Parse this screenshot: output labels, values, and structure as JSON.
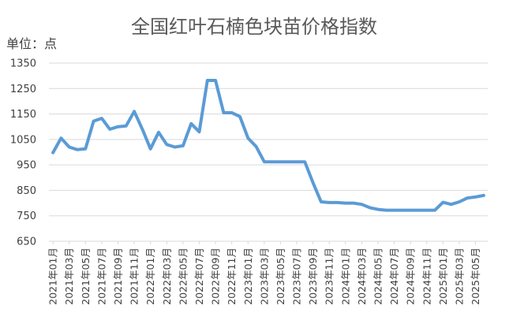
{
  "chart_data": {
    "type": "line",
    "title": "全国红叶石楠色块苗价格指数",
    "unit_label": "单位：点",
    "ylim": [
      650,
      1350
    ],
    "yticks": [
      650,
      750,
      850,
      950,
      1050,
      1150,
      1250,
      1350
    ],
    "grid": true,
    "line_color": "#5b9bd5",
    "x": [
      "2021年01月",
      "2021年02月",
      "2021年03月",
      "2021年04月",
      "2021年05月",
      "2021年06月",
      "2021年07月",
      "2021年08月",
      "2021年09月",
      "2021年10月",
      "2021年11月",
      "2021年12月",
      "2022年01月",
      "2022年02月",
      "2022年03月",
      "2022年04月",
      "2022年05月",
      "2022年06月",
      "2022年07月",
      "2022年08月",
      "2022年09月",
      "2022年10月",
      "2022年11月",
      "2022年12月",
      "2023年01月",
      "2023年02月",
      "2023年03月",
      "2023年04月",
      "2023年05月",
      "2023年06月",
      "2023年07月",
      "2023年08月",
      "2023年09月",
      "2023年10月",
      "2023年11月",
      "2023年12月",
      "2024年01月",
      "2024年02月",
      "2024年03月",
      "2024年04月",
      "2024年05月",
      "2024年06月",
      "2024年07月",
      "2024年08月",
      "2024年09月",
      "2024年10月",
      "2024年11月",
      "2024年12月",
      "2025年01月",
      "2025年02月",
      "2025年03月",
      "2025年04月",
      "2025年05月",
      "2025年06月"
    ],
    "xtick_labels": [
      "2021年01月",
      "2021年03月",
      "2021年05月",
      "2021年07月",
      "2021年09月",
      "2021年11月",
      "2022年01月",
      "2022年03月",
      "2022年05月",
      "2022年07月",
      "2022年09月",
      "2022年11月",
      "2023年01月",
      "2023年03月",
      "2023年05月",
      "2023年07月",
      "2023年09月",
      "2023年11月",
      "2024年01月",
      "2024年03月",
      "2024年05月",
      "2024年07月",
      "2024年09月",
      "2024年11月",
      "2025年01月",
      "2025年03月",
      "2025年05月"
    ],
    "values": [
      998,
      1055,
      1020,
      1010,
      1013,
      1122,
      1133,
      1090,
      1100,
      1103,
      1160,
      1090,
      1013,
      1078,
      1030,
      1020,
      1025,
      1112,
      1080,
      1282,
      1282,
      1155,
      1155,
      1140,
      1055,
      1022,
      962,
      962,
      962,
      962,
      962,
      962,
      880,
      805,
      802,
      802,
      800,
      800,
      795,
      782,
      775,
      772,
      772,
      772,
      772,
      772,
      772,
      772,
      803,
      795,
      805,
      820,
      824,
      830
    ]
  }
}
